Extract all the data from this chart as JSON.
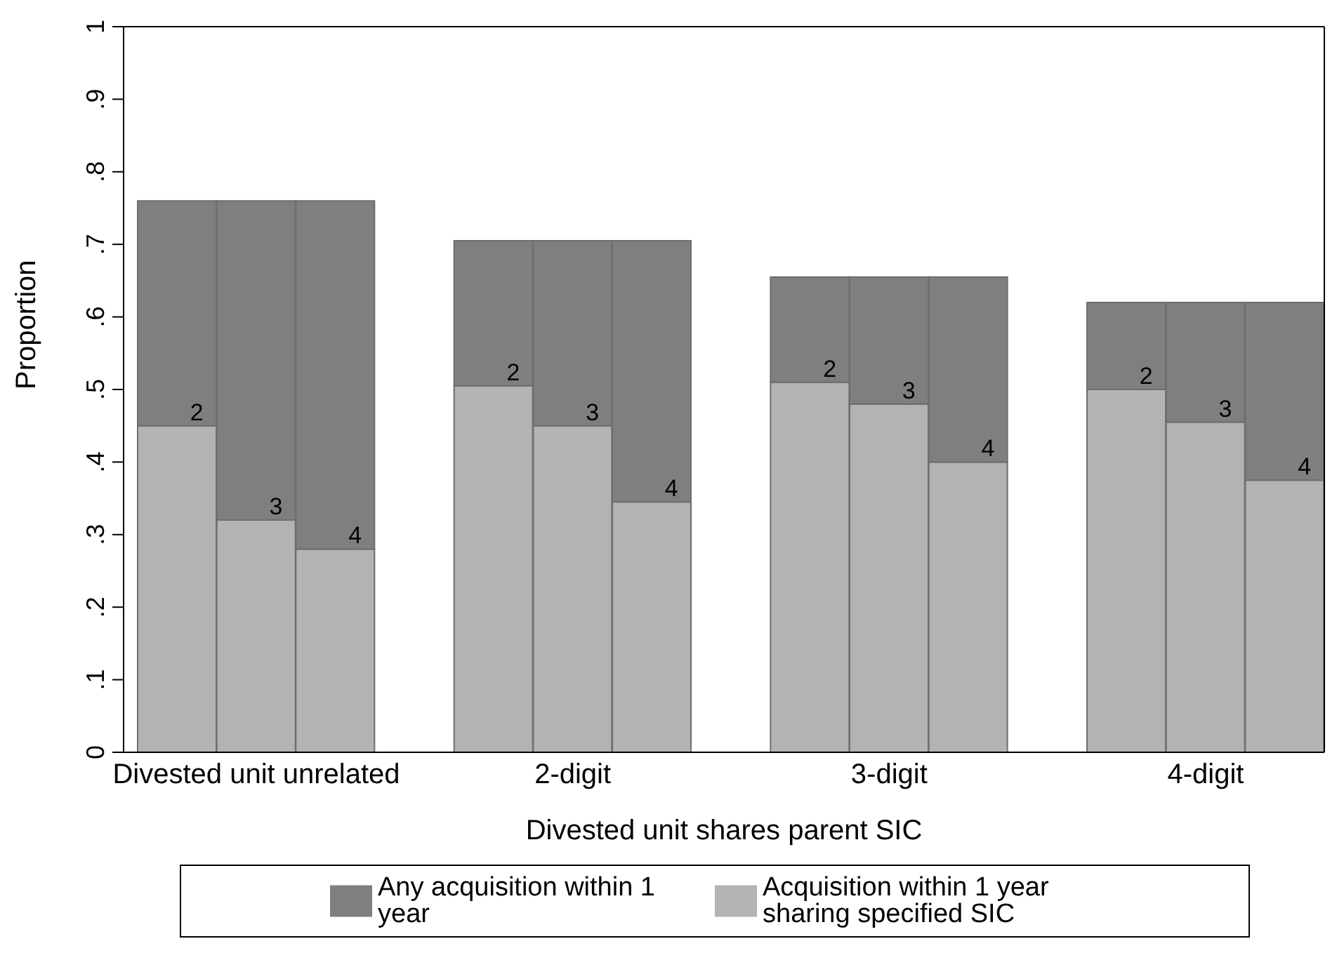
{
  "chart_data": {
    "type": "bar",
    "stacked": true,
    "ylabel": "Proportion",
    "xlabel": "Divested unit shares parent SIC",
    "categories": [
      null,
      "Divested unit unrelated",
      null,
      null,
      null,
      "2-digit",
      null,
      null,
      null,
      "3-digit",
      null,
      null,
      null,
      "4-digit",
      null
    ],
    "series": [
      {
        "name": "Acquisition within 1 year sharing specified SIC",
        "color": "#b3b3b3",
        "values": [
          0.45,
          0.32,
          0.28,
          null,
          0.505,
          0.45,
          0.345,
          null,
          0.51,
          0.48,
          0.4,
          null,
          0.5,
          0.455,
          0.375
        ]
      },
      {
        "name": "Any acquisition within 1 year",
        "color": "#7f7f7f",
        "values": [
          0.31,
          0.44,
          0.48,
          null,
          0.2,
          0.255,
          0.36,
          null,
          0.145,
          0.175,
          0.255,
          null,
          0.12,
          0.165,
          0.245
        ]
      }
    ],
    "ylim": [
      0,
      1
    ],
    "yticks": [
      0,
      {
        "value": 0.1,
        "label": ".1"
      },
      {
        "value": 0.2,
        "label": ".2"
      },
      {
        "value": 0.3,
        "label": ".3"
      },
      {
        "value": 0.4,
        "label": ".4"
      },
      {
        "value": 0.5,
        "label": ".5"
      },
      {
        "value": 0.6,
        "label": ".6"
      },
      {
        "value": 0.7,
        "label": ".7"
      },
      {
        "value": 0.8,
        "label": ".8"
      },
      {
        "value": 0.9,
        "label": ".9"
      },
      1
    ],
    "annotations": [
      "2",
      "3",
      "4",
      "2",
      "3",
      "4",
      "2",
      "3",
      "4",
      "2",
      "3",
      "4"
    ],
    "grid": false,
    "legend": "bottom"
  }
}
